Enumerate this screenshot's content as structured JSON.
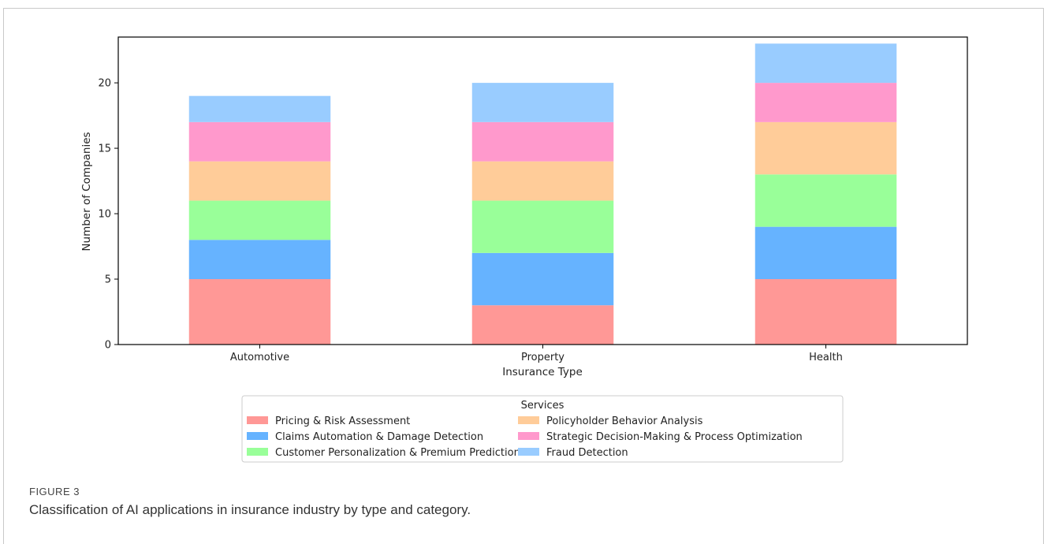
{
  "figure": {
    "label": "FIGURE 3",
    "caption": "Classification of AI applications in insurance industry by type and category."
  },
  "chart_data": {
    "type": "bar",
    "stacked": true,
    "xlabel": "Insurance Type",
    "ylabel": "Number of Companies",
    "categories": [
      "Automotive",
      "Property",
      "Health"
    ],
    "ylim": [
      0,
      23.5
    ],
    "yticks": [
      0,
      5,
      10,
      15,
      20
    ],
    "grid": false,
    "legend": {
      "title": "Services",
      "placement": "below-center",
      "columns": 2
    },
    "series": [
      {
        "name": "Pricing & Risk Assessment",
        "color": "#ff9896",
        "values": [
          5,
          3,
          5
        ]
      },
      {
        "name": "Claims Automation & Damage Detection",
        "color": "#66b3ff",
        "values": [
          3,
          4,
          4
        ]
      },
      {
        "name": "Customer Personalization & Premium Prediction",
        "color": "#99ff99",
        "values": [
          3,
          4,
          4
        ]
      },
      {
        "name": "Policyholder Behavior Analysis",
        "color": "#ffcc99",
        "values": [
          3,
          3,
          4
        ]
      },
      {
        "name": "Strategic Decision-Making & Process Optimization",
        "color": "#ff99cc",
        "values": [
          3,
          3,
          3
        ]
      },
      {
        "name": "Fraud Detection",
        "color": "#99ccff",
        "values": [
          2,
          3,
          3
        ]
      }
    ]
  }
}
